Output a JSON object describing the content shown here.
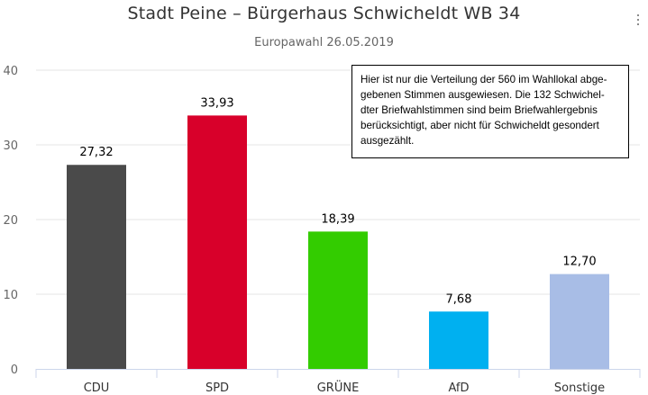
{
  "chart_data": {
    "type": "bar",
    "title": "Stadt Peine – Bürgerhaus Schwicheldt WB 34",
    "subtitle": "Europawahl 26.05.2019",
    "categories": [
      "CDU",
      "SPD",
      "GRÜNE",
      "AfD",
      "Sonstige"
    ],
    "values": [
      27.32,
      33.93,
      18.39,
      7.68,
      12.7
    ],
    "value_labels": [
      "27,32",
      "33,93",
      "18,39",
      "7,68",
      "12,70"
    ],
    "colors": [
      "#4a4a4a",
      "#d8002a",
      "#33cc00",
      "#00b0f0",
      "#a8bde6"
    ],
    "ylim": [
      0,
      40
    ],
    "yticks": [
      "0",
      "10",
      "20",
      "30",
      "40"
    ],
    "ytick_values": [
      0,
      10,
      20,
      30,
      40
    ],
    "xlabel": "",
    "ylabel": "",
    "grid": true,
    "annotation": "Hier ist nur die Verteilung der 560 im Wahllokal abge-\ngebenen Stimmen ausgewiesen. Die 132 Schwichel-\ndter Briefwahlstimmen sind beim Briefwahlergebnis\nberücksichtigt, aber nicht für Schwicheldt gesondert\nausgezählt."
  }
}
